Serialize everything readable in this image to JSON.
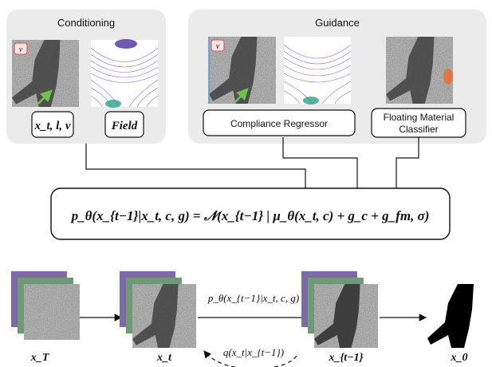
{
  "conditioning": {
    "title": "Conditioning",
    "badge": "v",
    "inputs_label": "x_t, l, v",
    "field_label": "Field"
  },
  "guidance": {
    "title": "Guidance",
    "badge": "v",
    "regressor_label": "Compliance Regressor",
    "classifier_label_line1": "Floating Material",
    "classifier_label_line2": "Classifier"
  },
  "equation": "p_θ(x_{t−1}|x_t, c, g) = 𝒩(x_{t−1} | μ_θ(x_t, c) + g_c + g_fm, σ)",
  "chain": {
    "xT": "x_T",
    "xt": "x_t",
    "xt1": "x_{t−1}",
    "x0": "x_0",
    "reverse_label": "p_θ(x_{t−1}|x_t, c, g)",
    "forward_label": "q(x_t|x_{t−1})"
  },
  "colors": {
    "panel_fill": "#ebebeb",
    "stack_purple": "#7b6aa6",
    "stack_green": "#6f9a78",
    "noise_gray": "#9a9a9a",
    "shape_dark": "#333333",
    "field_purple": "#6a4fc9",
    "arrow_green": "#6fc24a",
    "badge_red": "#d9534f",
    "classifier_highlight": "#e8703a"
  }
}
